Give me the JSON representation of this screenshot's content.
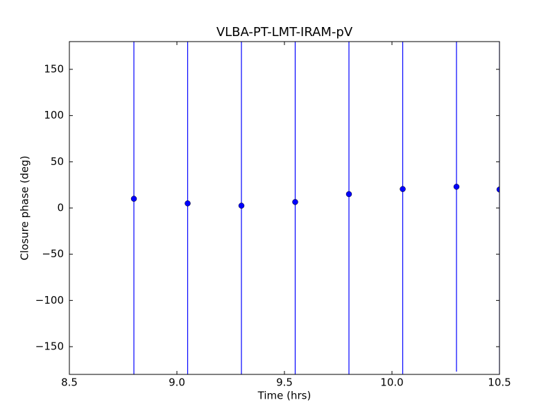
{
  "chart_data": {
    "type": "errorbar",
    "title": "VLBA-PT-LMT-IRAM-pV",
    "xlabel": "Time (hrs)",
    "ylabel": "Closure phase (deg)",
    "x": [
      8.8,
      9.05,
      9.3,
      9.55,
      9.8,
      10.05,
      10.3,
      10.5
    ],
    "values": [
      10,
      5,
      2.5,
      6.5,
      15,
      20.5,
      23,
      20
    ],
    "errors": [
      200,
      200,
      200,
      200,
      200,
      200,
      200,
      200
    ],
    "color": "#0000ff",
    "xlim": [
      8.5,
      10.5
    ],
    "xticks": [
      8.5,
      {
        "value": 9,
        "label": "9.0"
      },
      9.5,
      {
        "value": 10,
        "label": "10.0"
      },
      10.5
    ],
    "ylim": [
      -180,
      180
    ],
    "yticks": [
      {
        "value": -150,
        "label": "−150"
      },
      {
        "value": -100,
        "label": "−100"
      },
      {
        "value": -50,
        "label": "−50"
      },
      0,
      50,
      100,
      150
    ]
  }
}
